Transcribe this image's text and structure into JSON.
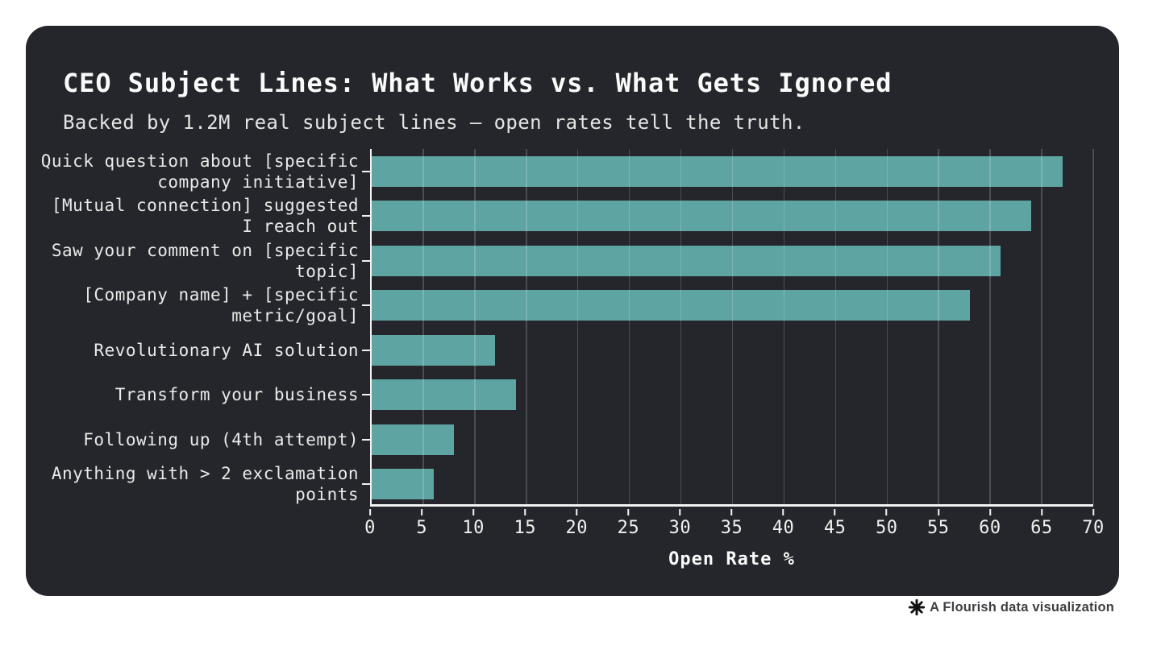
{
  "colors": {
    "page_bg": "#ffffff",
    "card_bg": "#24262b",
    "bar": "#5fa8a6",
    "axis": "#f2f2f2",
    "grid": "rgba(255,255,255,0.18)",
    "label_text": "#eaeaea",
    "credit_text": "#3d3f42",
    "credit_icon": "#111111"
  },
  "chart_data": {
    "type": "bar",
    "orientation": "horizontal",
    "title": "CEO Subject Lines: What Works vs. What Gets Ignored",
    "subtitle": "Backed by 1.2M real subject lines — open rates tell the truth.",
    "categories": [
      "Quick question about [specific\ncompany initiative]",
      "[Mutual connection] suggested\nI reach out",
      "Saw your comment on [specific\ntopic]",
      "[Company name] + [specific\nmetric/goal]",
      "Revolutionary AI solution",
      "Transform your business",
      "Following up (4th attempt)",
      "Anything with > 2 exclamation\npoints"
    ],
    "values": [
      67,
      64,
      61,
      58,
      12,
      14,
      8,
      6
    ],
    "xlabel": "Open Rate %",
    "xlim": [
      0,
      70
    ],
    "xticks": [
      0,
      5,
      10,
      15,
      20,
      25,
      30,
      35,
      40,
      45,
      50,
      55,
      60,
      65,
      70
    ],
    "grid": true,
    "legend": false
  },
  "footer": {
    "credit": "A Flourish data visualization",
    "icon_name": "flourish-asterisk-icon"
  }
}
